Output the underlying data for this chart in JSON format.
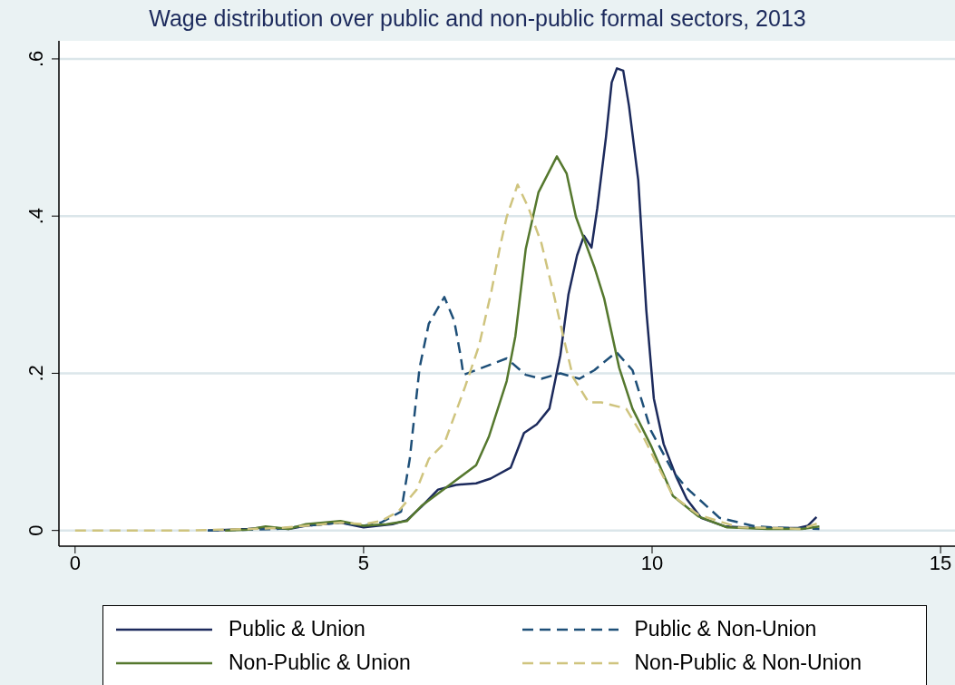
{
  "chart_data": {
    "type": "line",
    "title": "Wage distribution over public and non-public formal sectors, 2013",
    "xlim": [
      -0.28,
      15.25
    ],
    "xticks": [
      0,
      5,
      10,
      15
    ],
    "ylim": [
      -0.02,
      0.623
    ],
    "yticks": [
      {
        "value": 0,
        "label": "0"
      },
      {
        "value": 0.2,
        "label": ".2"
      },
      {
        "value": 0.4,
        "label": ".4"
      },
      {
        "value": 0.6,
        "label": ".6"
      }
    ],
    "grid": "y",
    "legend": "bottom",
    "marker": "none",
    "series": [
      {
        "name": "Public & Union",
        "color": "#1c2a5c",
        "line_style": "solid",
        "x": [
          2.3,
          3.0,
          3.3,
          3.7,
          4.0,
          4.3,
          4.6,
          5.0,
          5.5,
          5.75,
          6.0,
          6.29,
          6.6,
          6.95,
          7.2,
          7.55,
          7.78,
          8.0,
          8.22,
          8.41,
          8.55,
          8.7,
          8.82,
          8.95,
          9.05,
          9.2,
          9.3,
          9.39,
          9.5,
          9.6,
          9.76,
          9.9,
          10.03,
          10.2,
          10.42,
          10.6,
          10.85,
          11.27,
          11.8,
          12.53,
          12.7,
          12.85
        ],
        "values": [
          0,
          0.002,
          0.004,
          0.002,
          0.006,
          0.008,
          0.01,
          0.004,
          0.008,
          0.013,
          0.03,
          0.052,
          0.058,
          0.06,
          0.066,
          0.08,
          0.124,
          0.135,
          0.155,
          0.223,
          0.3,
          0.35,
          0.375,
          0.36,
          0.41,
          0.5,
          0.57,
          0.588,
          0.585,
          0.54,
          0.446,
          0.28,
          0.168,
          0.11,
          0.068,
          0.04,
          0.016,
          0.005,
          0.003,
          0.003,
          0.006,
          0.017
        ]
      },
      {
        "name": "Public & Non-Union",
        "color": "#1e4f78",
        "line_style": "dashed",
        "x": [
          2.3,
          3.0,
          3.5,
          4.0,
          4.3,
          4.6,
          5.0,
          5.3,
          5.65,
          5.8,
          5.97,
          6.13,
          6.4,
          6.57,
          6.68,
          6.73,
          6.95,
          7.27,
          7.48,
          7.81,
          8.08,
          8.41,
          8.74,
          9.0,
          9.38,
          9.66,
          9.98,
          10.36,
          10.6,
          11.17,
          11.8,
          12.4,
          12.9
        ],
        "values": [
          0,
          0.001,
          0.002,
          0.006,
          0.008,
          0.01,
          0.006,
          0.01,
          0.024,
          0.091,
          0.207,
          0.263,
          0.297,
          0.267,
          0.223,
          0.198,
          0.204,
          0.213,
          0.219,
          0.198,
          0.193,
          0.2,
          0.193,
          0.204,
          0.227,
          0.204,
          0.127,
          0.075,
          0.054,
          0.016,
          0.005,
          0.003,
          0.002
        ]
      },
      {
        "name": "Non-Public & Union",
        "color": "#55782e",
        "line_style": "solid",
        "x": [
          2.6,
          3.0,
          3.3,
          3.7,
          4.0,
          4.3,
          4.6,
          5.0,
          5.4,
          5.75,
          6.0,
          6.29,
          6.95,
          7.17,
          7.48,
          7.63,
          7.81,
          8.03,
          8.35,
          8.52,
          8.68,
          9.0,
          9.17,
          9.43,
          9.66,
          9.98,
          10.36,
          10.8,
          11.3,
          12.0,
          12.6,
          12.9
        ],
        "values": [
          0,
          0.001,
          0.005,
          0.002,
          0.008,
          0.01,
          0.012,
          0.006,
          0.008,
          0.012,
          0.031,
          0.047,
          0.083,
          0.119,
          0.19,
          0.247,
          0.358,
          0.43,
          0.476,
          0.454,
          0.399,
          0.335,
          0.295,
          0.207,
          0.155,
          0.108,
          0.044,
          0.018,
          0.004,
          0.002,
          0.002,
          0.005
        ]
      },
      {
        "name": "Non-Public & Non-Union",
        "color": "#cfc47e",
        "line_style": "dashed",
        "x": [
          0,
          1.0,
          2.0,
          2.5,
          3.0,
          3.5,
          4.0,
          4.3,
          4.6,
          5.0,
          5.3,
          5.6,
          5.92,
          6.13,
          6.4,
          6.76,
          7.0,
          7.22,
          7.37,
          7.48,
          7.67,
          7.86,
          8.08,
          8.3,
          8.46,
          8.63,
          8.9,
          9.12,
          9.55,
          9.87,
          10.36,
          10.8,
          11.5,
          12.2,
          12.6,
          12.9
        ],
        "values": [
          0,
          0,
          0,
          0.001,
          0.002,
          0.003,
          0.006,
          0.008,
          0.01,
          0.008,
          0.012,
          0.024,
          0.052,
          0.091,
          0.111,
          0.183,
          0.235,
          0.306,
          0.363,
          0.399,
          0.44,
          0.41,
          0.366,
          0.299,
          0.247,
          0.195,
          0.163,
          0.163,
          0.155,
          0.116,
          0.044,
          0.02,
          0.004,
          0.003,
          0.002,
          0.01
        ]
      }
    ]
  }
}
